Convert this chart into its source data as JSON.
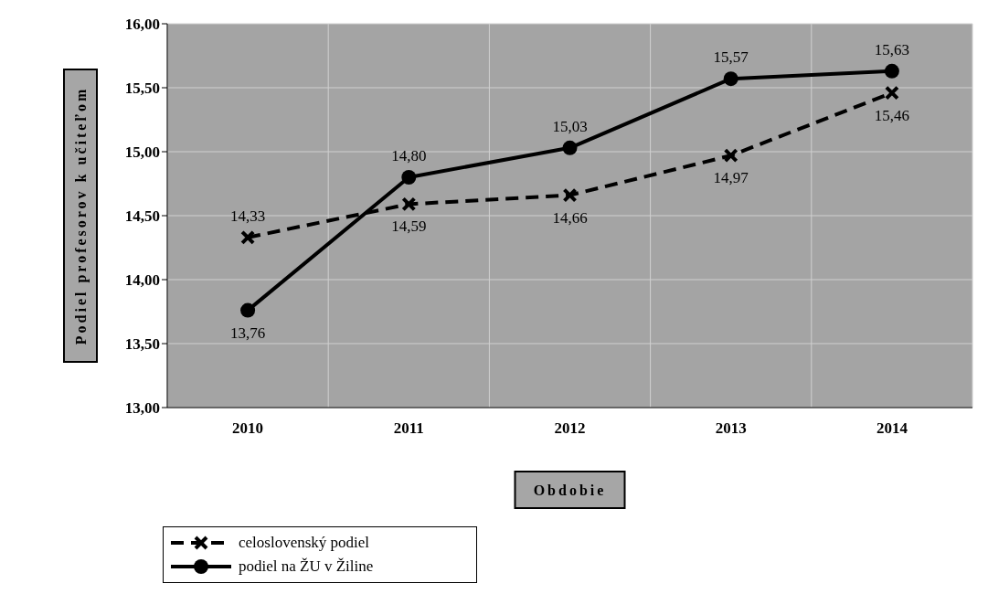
{
  "chart_data": {
    "type": "line",
    "xlabel": "Obdobie",
    "ylabel": "Podiel profesorov k učiteľom",
    "categories": [
      "2010",
      "2011",
      "2012",
      "2013",
      "2014"
    ],
    "series": [
      {
        "name": "celoslovenský podiel",
        "color": "#000000",
        "values": [
          14.33,
          14.59,
          14.66,
          14.97,
          15.46
        ],
        "value_labels": [
          "14,33",
          "14,59",
          "14,66",
          "14,97",
          "15,46"
        ],
        "marker": "cross",
        "line_style": "dashed"
      },
      {
        "name": "podiel na ŽU v Žiline",
        "color": "#000000",
        "values": [
          13.76,
          14.8,
          15.03,
          15.57,
          15.63
        ],
        "value_labels": [
          "13,76",
          "14,80",
          "15,03",
          "15,57",
          "15,63"
        ],
        "marker": "circle",
        "line_style": "solid"
      }
    ],
    "ylim": [
      13,
      16
    ],
    "yticks": [
      {
        "value": 13,
        "label": "13,00"
      },
      {
        "value": 13.5,
        "label": "13,50"
      },
      {
        "value": 14,
        "label": "14,00"
      },
      {
        "value": 14.5,
        "label": "14,50"
      },
      {
        "value": 15,
        "label": "15,00"
      },
      {
        "value": 15.5,
        "label": "15,50"
      },
      {
        "value": 16,
        "label": "16,00"
      }
    ],
    "grid": true,
    "legend": "bottom left"
  }
}
